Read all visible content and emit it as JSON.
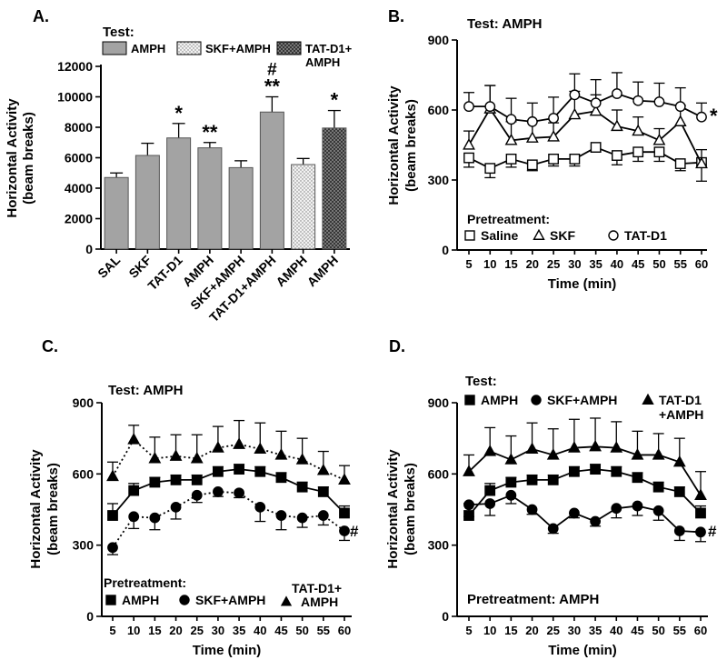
{
  "chart_data": [
    {
      "id": "A",
      "panel_label": "A.",
      "type": "bar",
      "legend": {
        "title": "Test:",
        "entries": [
          {
            "name": "AMPH",
            "fill": "gray"
          },
          {
            "name": "SKF+AMPH",
            "fill": "dotted"
          },
          {
            "name": "TAT-D1+",
            "name2": "AMPH",
            "fill": "crosshatch"
          }
        ]
      },
      "ylabel": "Horizontal Activity",
      "ylabel2": "(beam breaks)",
      "ylim": [
        0,
        12000
      ],
      "yticks": [
        "0",
        "2000",
        "4000",
        "6000",
        "8000",
        "10000",
        "12000"
      ],
      "ytick_values": [
        0,
        2000,
        4000,
        6000,
        8000,
        10000,
        12000
      ],
      "categories": [
        "SAL",
        "SKF",
        "TAT-D1",
        "AMPH",
        "SKF+AMPH",
        "TAT-D1+AMPH",
        "AMPH",
        "AMPH"
      ],
      "values": [
        4700,
        6150,
        7300,
        6650,
        5350,
        9000,
        5550,
        7950
      ],
      "errors": [
        300,
        800,
        950,
        350,
        450,
        1000,
        400,
        1150
      ],
      "fills": [
        "gray",
        "gray",
        "gray",
        "gray",
        "gray",
        "gray",
        "dotted",
        "crosshatch"
      ],
      "annotations": [
        "",
        "",
        "*",
        "**",
        "",
        "**",
        "",
        "*"
      ],
      "annotations_top": [
        "",
        "",
        "",
        "",
        "",
        "#",
        "",
        ""
      ]
    },
    {
      "id": "B",
      "panel_label": "B.",
      "type": "line",
      "title": "Test: AMPH",
      "xlabel": "Time (min)",
      "ylabel": "Horizontal Activity",
      "ylabel2": "(beam breaks)",
      "ylim": [
        0,
        900
      ],
      "yticks": [
        "0",
        "300",
        "600",
        "900"
      ],
      "ytick_values": [
        0,
        300,
        600,
        900
      ],
      "x": [
        5,
        10,
        15,
        20,
        25,
        30,
        35,
        40,
        45,
        50,
        55,
        60
      ],
      "xtick_labels": [
        "5",
        "10",
        "15",
        "20",
        "25",
        "30",
        "35",
        "40",
        "45",
        "50",
        "55",
        "60"
      ],
      "legend_title": "Pretreatment:",
      "series": [
        {
          "name": "Saline",
          "marker": "square-open",
          "dash": "solid",
          "values": [
            395,
            350,
            390,
            365,
            390,
            390,
            440,
            405,
            420,
            420,
            370,
            375
          ],
          "errors": [
            40,
            40,
            35,
            25,
            30,
            30,
            20,
            40,
            40,
            40,
            30,
            80
          ]
        },
        {
          "name": "SKF",
          "marker": "triangle-open",
          "dash": "solid",
          "values": [
            450,
            605,
            470,
            480,
            485,
            580,
            595,
            530,
            510,
            470,
            550,
            370
          ],
          "errors": [
            60,
            100,
            80,
            70,
            60,
            100,
            70,
            70,
            60,
            50,
            70,
            60
          ]
        },
        {
          "name": "TAT-D1",
          "marker": "circle-open",
          "dash": "solid",
          "values": [
            615,
            615,
            560,
            550,
            565,
            665,
            630,
            670,
            640,
            635,
            615,
            570
          ],
          "errors": [
            60,
            90,
            90,
            80,
            90,
            90,
            100,
            90,
            80,
            80,
            80,
            60
          ]
        }
      ],
      "annotation": "*"
    },
    {
      "id": "C",
      "panel_label": "C.",
      "type": "line",
      "title": "Test: AMPH",
      "xlabel": "Time (min)",
      "ylabel": "Horizontal Activity",
      "ylabel2": "(beam breaks)",
      "ylim": [
        0,
        900
      ],
      "yticks": [
        "0",
        "300",
        "600",
        "900"
      ],
      "ytick_values": [
        0,
        300,
        600,
        900
      ],
      "x": [
        5,
        10,
        15,
        20,
        25,
        30,
        35,
        40,
        45,
        50,
        55,
        60
      ],
      "xtick_labels": [
        "5",
        "10",
        "15",
        "20",
        "25",
        "30",
        "35",
        "40",
        "45",
        "50",
        "55",
        "60"
      ],
      "legend_title": "Pretreatment:",
      "series": [
        {
          "name": "AMPH",
          "marker": "square-filled",
          "dash": "solid",
          "values": [
            425,
            530,
            565,
            575,
            575,
            610,
            620,
            610,
            585,
            545,
            525,
            435
          ],
          "errors": [
            50,
            30,
            20,
            20,
            20,
            20,
            20,
            20,
            20,
            20,
            20,
            30
          ]
        },
        {
          "name": "SKF+AMPH",
          "marker": "circle-filled",
          "dash": "dotted",
          "values": [
            290,
            420,
            415,
            460,
            510,
            525,
            520,
            460,
            425,
            415,
            425,
            360
          ],
          "errors": [
            30,
            50,
            50,
            50,
            30,
            20,
            20,
            60,
            60,
            40,
            40,
            40
          ]
        },
        {
          "name": "TAT-D1+",
          "name2": "AMPH",
          "marker": "triangle-filled",
          "dash": "dotted",
          "values": [
            590,
            745,
            665,
            675,
            665,
            710,
            725,
            705,
            680,
            660,
            615,
            575
          ],
          "errors": [
            60,
            60,
            90,
            90,
            100,
            90,
            100,
            110,
            100,
            90,
            80,
            60
          ]
        }
      ],
      "annotation": "#"
    },
    {
      "id": "D",
      "panel_label": "D.",
      "type": "line",
      "title": "Test:",
      "footer": "Pretreatment: AMPH",
      "xlabel": "Time (min)",
      "ylabel": "Horizontal Activity",
      "ylabel2": "(beam breaks)",
      "ylim": [
        0,
        900
      ],
      "yticks": [
        "0",
        "300",
        "600",
        "900"
      ],
      "ytick_values": [
        0,
        300,
        600,
        900
      ],
      "x": [
        5,
        10,
        15,
        20,
        25,
        30,
        35,
        40,
        45,
        50,
        55,
        60
      ],
      "xtick_labels": [
        "5",
        "10",
        "15",
        "20",
        "25",
        "30",
        "35",
        "40",
        "45",
        "50",
        "55",
        "60"
      ],
      "series": [
        {
          "name": "AMPH",
          "marker": "square-filled",
          "dash": "solid",
          "values": [
            425,
            530,
            565,
            575,
            575,
            610,
            620,
            610,
            585,
            545,
            525,
            435
          ],
          "errors": [
            50,
            30,
            20,
            20,
            20,
            20,
            20,
            20,
            20,
            20,
            20,
            30
          ]
        },
        {
          "name": "SKF+AMPH",
          "marker": "circle-filled",
          "dash": "solid",
          "values": [
            470,
            475,
            510,
            450,
            370,
            435,
            400,
            455,
            465,
            445,
            360,
            355
          ],
          "errors": [
            50,
            50,
            35,
            20,
            20,
            20,
            20,
            40,
            40,
            40,
            40,
            40
          ]
        },
        {
          "name": "TAT-D1",
          "name2": "+AMPH",
          "marker": "triangle-filled",
          "dash": "solid",
          "values": [
            610,
            695,
            660,
            705,
            680,
            710,
            715,
            710,
            680,
            680,
            650,
            510
          ],
          "errors": [
            70,
            100,
            100,
            110,
            110,
            120,
            120,
            110,
            100,
            90,
            100,
            100
          ]
        }
      ],
      "annotation": "#"
    }
  ]
}
